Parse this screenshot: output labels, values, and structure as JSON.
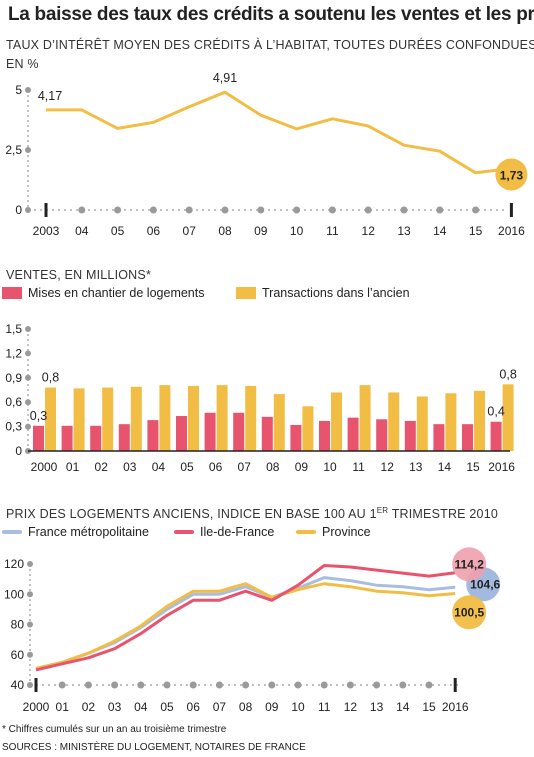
{
  "title": "La baisse des taux des crédits a soutenu les ventes et les prix",
  "colors": {
    "gold": "#f2bd45",
    "red": "#e8546e",
    "blue": "#a9bde0",
    "pink_bubble": "#f0a0ae",
    "blue_bubble": "#9eb6de",
    "axis": "#222222",
    "dot": "#9a9a9a",
    "grid": "#e6e6e6"
  },
  "footnote": "* Chiffres cumulés sur un an au troisième trimestre",
  "sources": "SOURCES : MINISTÈRE DU LOGEMENT, NOTAIRES DE FRANCE",
  "chart_data": [
    {
      "type": "line",
      "title": "TAUX D’INTÉRÊT MOYEN DES CRÉDITS À L’HABITAT, TOUTES DURÉES CONFONDUES",
      "subtitle": "EN %",
      "x_labels": [
        "2003",
        "04",
        "05",
        "06",
        "07",
        "08",
        "09",
        "10",
        "11",
        "12",
        "13",
        "14",
        "15",
        "2016"
      ],
      "y_ticks": [
        "0",
        "2,5",
        "5"
      ],
      "y_tick_values": [
        0,
        2.5,
        5
      ],
      "ylim": [
        0,
        5
      ],
      "series": [
        {
          "values": [
            4.17,
            4.17,
            3.4,
            3.65,
            4.3,
            4.91,
            3.95,
            3.38,
            3.8,
            3.5,
            2.7,
            2.45,
            1.55,
            1.73
          ]
        }
      ],
      "annotations": [
        {
          "index": 0,
          "text": "4,17"
        },
        {
          "index": 5,
          "text": "4,91"
        },
        {
          "index": 13,
          "text": "1,73"
        }
      ]
    },
    {
      "type": "bar",
      "title": "VENTES, EN MILLIONS*",
      "categories": [
        "2000",
        "01",
        "02",
        "03",
        "04",
        "05",
        "06",
        "07",
        "08",
        "09",
        "10",
        "11",
        "12",
        "13",
        "14",
        "15",
        "2016"
      ],
      "y_ticks": [
        "0",
        "0,3",
        "0,6",
        "0,9",
        "1,2",
        "1,5"
      ],
      "y_tick_values": [
        0,
        0.3,
        0.6,
        0.9,
        1.2,
        1.5
      ],
      "ylim": [
        0,
        1.5
      ],
      "series": [
        {
          "name": "Mises en chantier de logements",
          "values": [
            0.31,
            0.31,
            0.31,
            0.33,
            0.38,
            0.43,
            0.47,
            0.47,
            0.42,
            0.32,
            0.37,
            0.41,
            0.39,
            0.37,
            0.33,
            0.33,
            0.36
          ]
        },
        {
          "name": "Transactions dans l’ancien",
          "values": [
            0.78,
            0.77,
            0.78,
            0.79,
            0.81,
            0.8,
            0.81,
            0.8,
            0.7,
            0.55,
            0.72,
            0.81,
            0.72,
            0.67,
            0.71,
            0.74,
            0.82
          ]
        }
      ],
      "annotations": [
        {
          "series": 0,
          "index": 0,
          "text": "0,3"
        },
        {
          "series": 1,
          "index": 0,
          "text": "0,8"
        },
        {
          "series": 0,
          "index": 16,
          "text": "0,4"
        },
        {
          "series": 1,
          "index": 16,
          "text": "0,8"
        }
      ]
    },
    {
      "type": "line",
      "title_main": "PRIX DES LOGEMENTS ANCIENS, INDICE EN BASE 100 AU 1",
      "title_sup": "ER",
      "title_end": " TRIMESTRE 2010",
      "x_labels": [
        "2000",
        "01",
        "02",
        "03",
        "04",
        "05",
        "06",
        "07",
        "08",
        "09",
        "10",
        "11",
        "12",
        "13",
        "14",
        "15",
        "2016"
      ],
      "y_ticks": [
        "40",
        "60",
        "80",
        "100",
        "120"
      ],
      "y_tick_values": [
        40,
        60,
        80,
        100,
        120
      ],
      "ylim": [
        40,
        120
      ],
      "series": [
        {
          "name": "France métropolitaine",
          "values": [
            51,
            55,
            61,
            68,
            78,
            90,
            100,
            100,
            105,
            98,
            104,
            111,
            109,
            106,
            105,
            103,
            104.6
          ]
        },
        {
          "name": "Ile-de-France",
          "values": [
            50,
            54,
            58,
            64,
            74,
            86,
            96,
            96,
            102,
            96,
            106,
            119,
            118,
            116,
            114,
            112,
            114.2
          ]
        },
        {
          "name": "Province",
          "values": [
            51,
            55,
            61,
            69,
            79,
            92,
            102,
            102,
            107,
            98,
            103,
            107,
            105,
            102,
            101,
            99,
            100.5
          ]
        }
      ],
      "end_labels": [
        "104,6",
        "114,2",
        "100,5"
      ]
    }
  ]
}
